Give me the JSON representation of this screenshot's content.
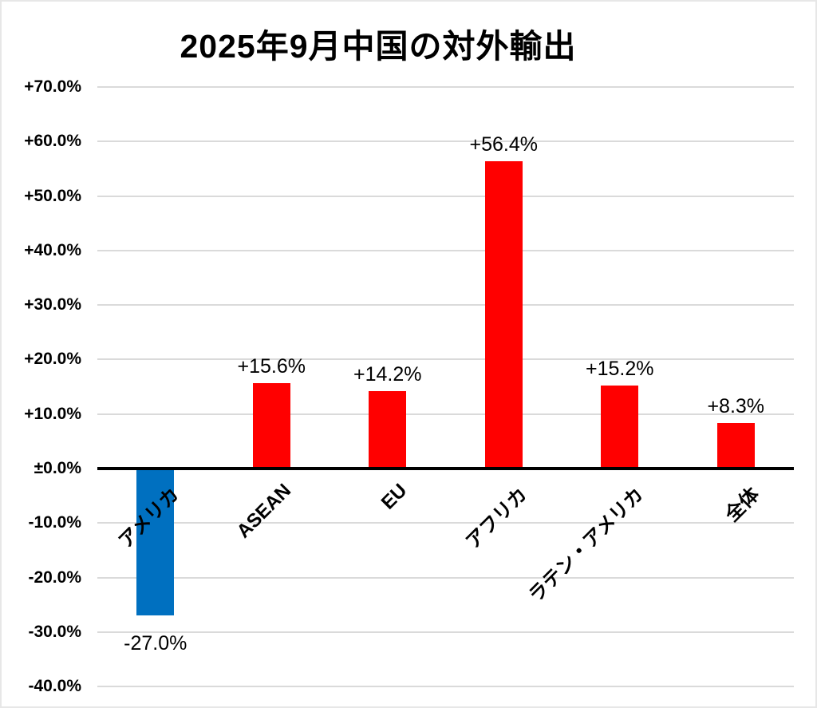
{
  "chart_data": {
    "type": "bar",
    "title": "2025年9月中国の対外輸出",
    "categories": [
      "アメリカ",
      "ASEAN",
      "EU",
      "アフリカ",
      "ラテン・アメリカ",
      "全体"
    ],
    "values": [
      -27.0,
      15.6,
      14.2,
      56.4,
      15.2,
      8.3
    ],
    "data_labels": [
      "-27.0%",
      "+15.6%",
      "+14.2%",
      "+56.4%",
      "+15.2%",
      "+8.3%"
    ],
    "bar_colors": [
      "#0070C0",
      "#FF0000",
      "#FF0000",
      "#FF0000",
      "#FF0000",
      "#FF0000"
    ],
    "xlabel": "",
    "ylabel": "",
    "ylim": [
      -40,
      70
    ],
    "y_axis": {
      "tick_values": [
        70,
        60,
        50,
        40,
        30,
        20,
        10,
        0,
        -10,
        -20,
        -30,
        -40
      ],
      "tick_labels": [
        "+70.0%",
        "+60.0%",
        "+50.0%",
        "+40.0%",
        "+30.0%",
        "+20.0%",
        "+10.0%",
        "±0.0%",
        "-10.0%",
        "-20.0%",
        "-30.0%",
        "-40.0%"
      ]
    },
    "grid": true,
    "legend": "none",
    "category_label_rotation_deg": -45,
    "colors": {
      "positive_bar": "#FF0000",
      "negative_bar": "#0070C0",
      "gridline": "#DADADA",
      "zero_line": "#000000",
      "text": "#000000",
      "background": "#FFFFFF"
    }
  }
}
